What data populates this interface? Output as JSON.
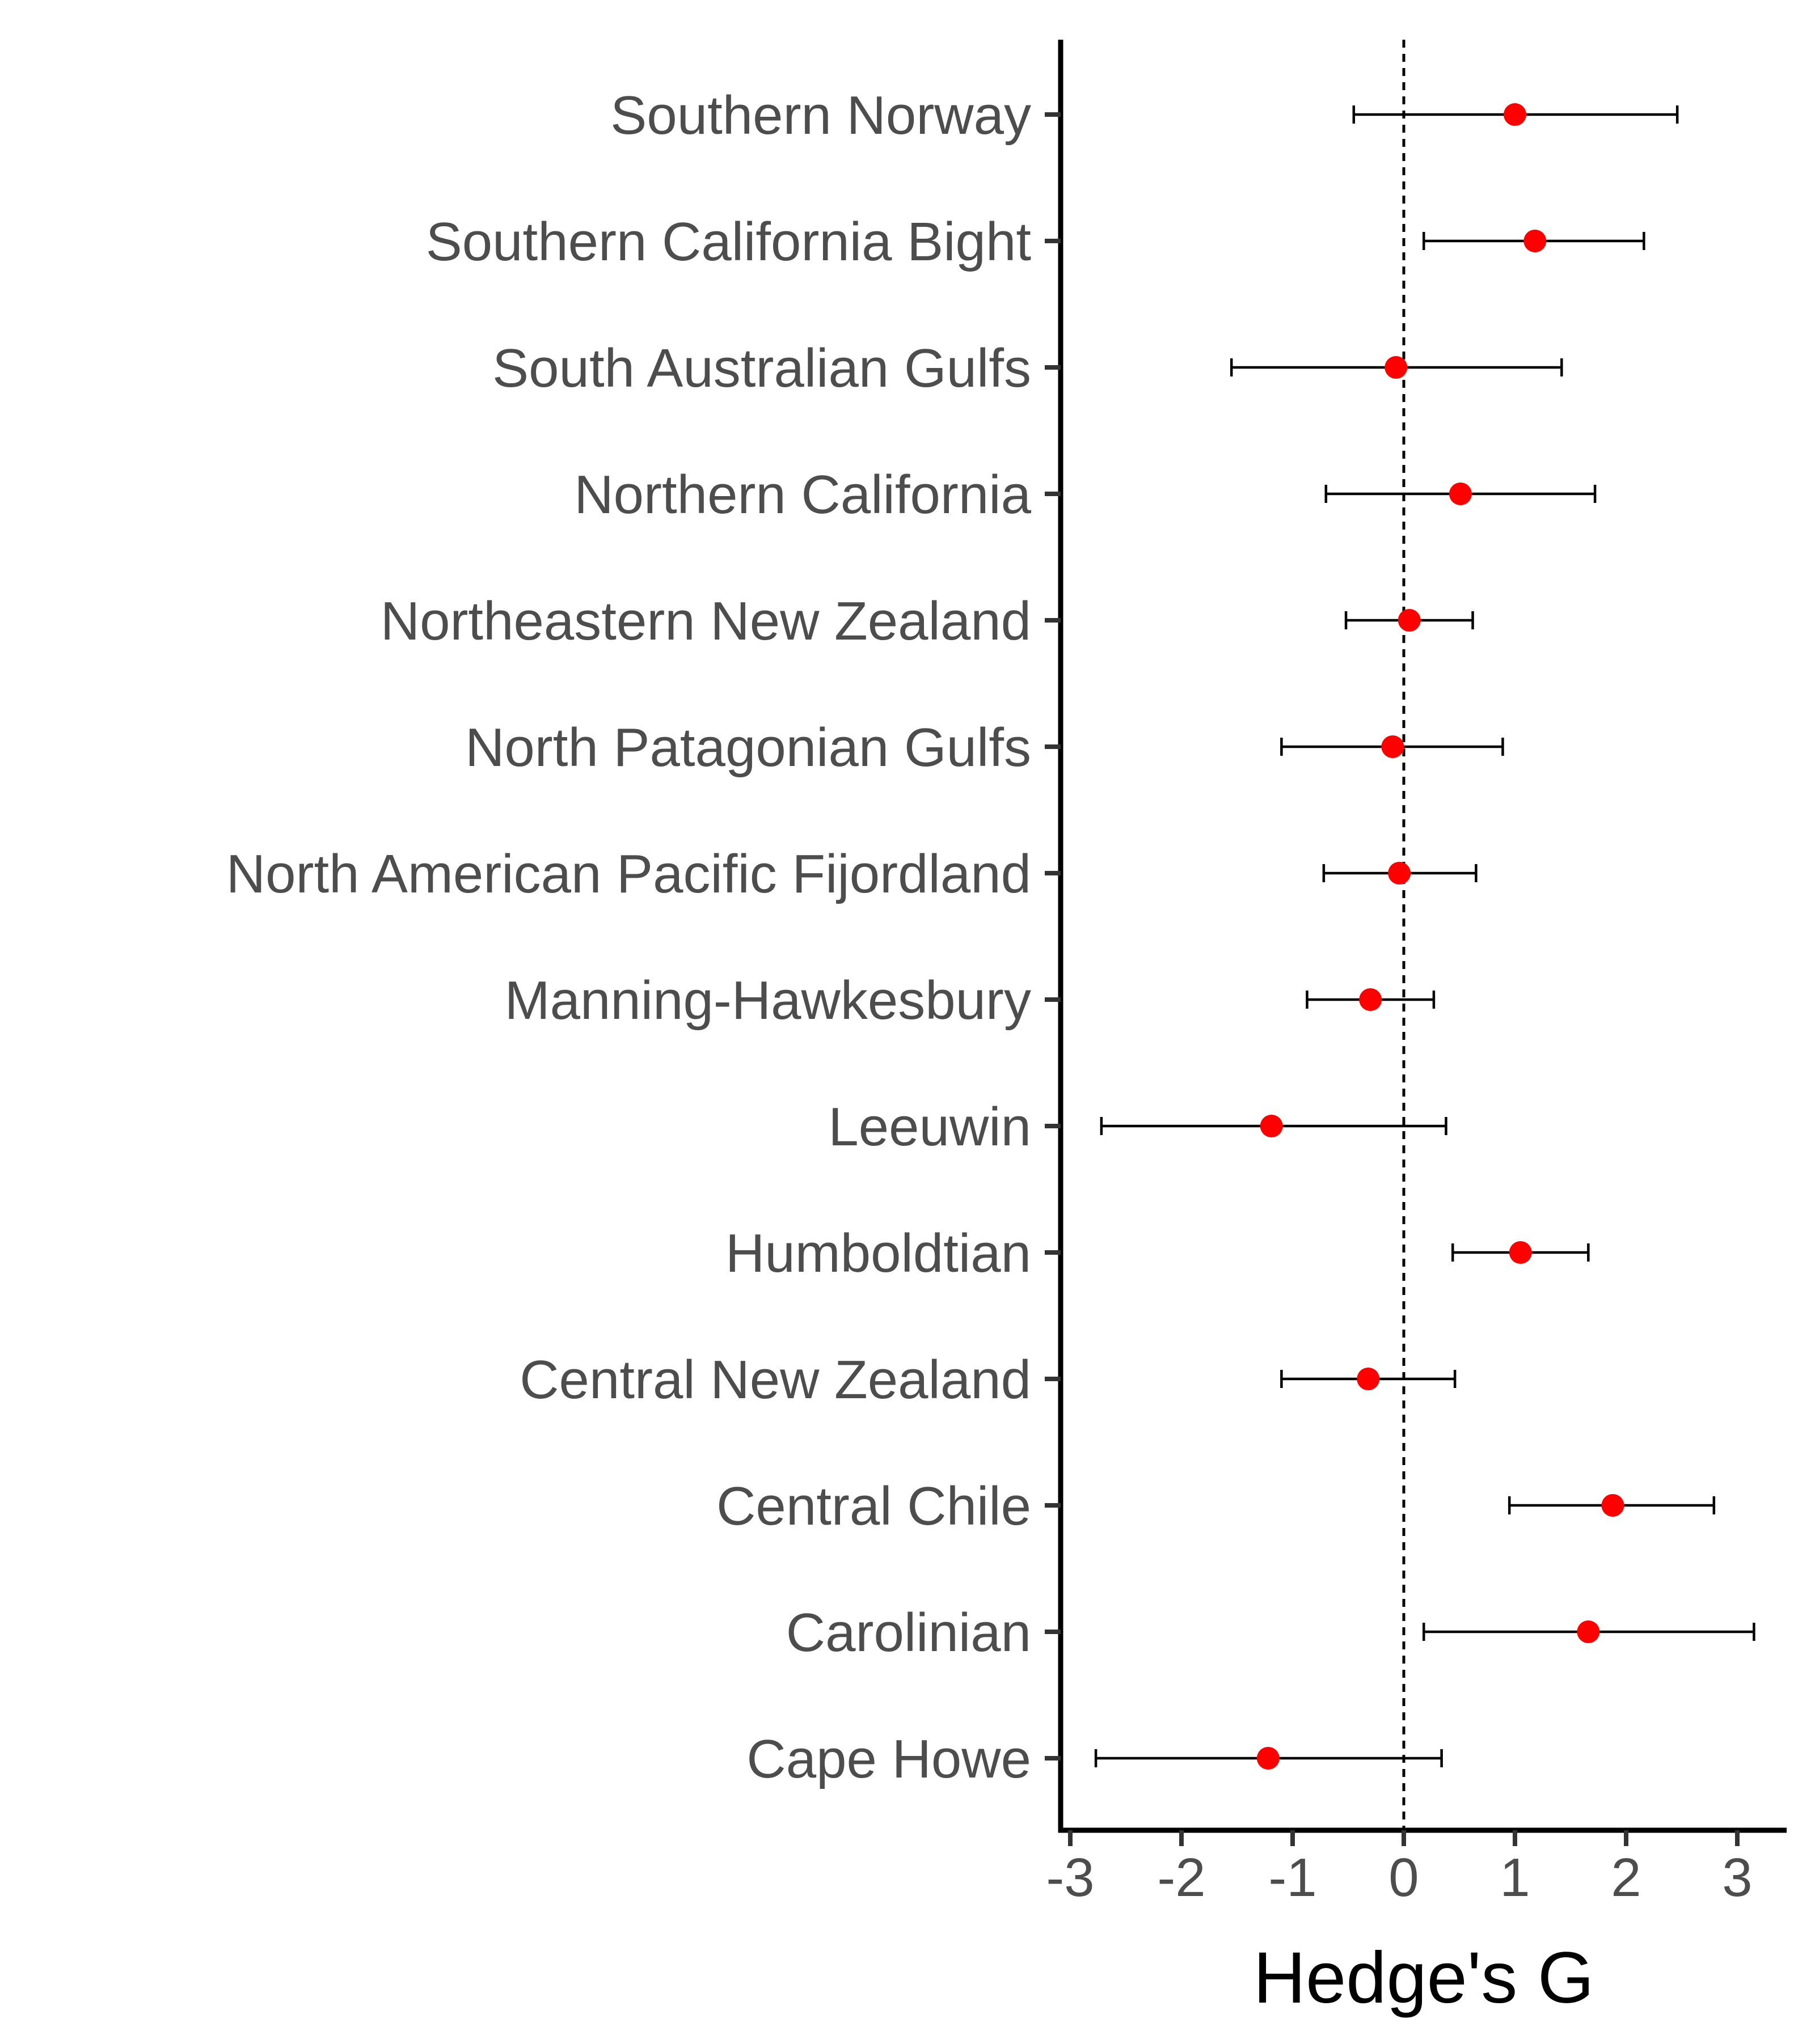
{
  "chart_data": {
    "type": "scatter",
    "subtype": "forest-plot",
    "title": "",
    "xlabel": "Hedge's G",
    "ylabel": "",
    "xlim": [
      -3.1,
      3.45
    ],
    "xticks": [
      -3,
      -2,
      -1,
      0,
      1,
      2,
      3
    ],
    "xtick_labels": [
      "-3",
      "-2",
      "-1",
      "0",
      "1",
      "2",
      "3"
    ],
    "reference_line": {
      "x": 0,
      "style": "dashed"
    },
    "grid": false,
    "legend": "none",
    "point_color": "#ff0000",
    "errorbar_color": "#000000",
    "categories": [
      "Southern Norway",
      "Southern California Bight",
      "South Australian Gulfs",
      "Northern California",
      "Northeastern New Zealand",
      "North Patagonian Gulfs",
      "North American Pacific Fijordland",
      "Manning-Hawkesbury",
      "Leeuwin",
      "Humboldtian",
      "Central New Zealand",
      "Central Chile",
      "Carolinian",
      "Cape Howe"
    ],
    "estimates": [
      1.0,
      1.18,
      -0.07,
      0.51,
      0.05,
      -0.1,
      -0.04,
      -0.3,
      -1.19,
      1.05,
      -0.32,
      1.88,
      1.66,
      -1.22
    ],
    "ci_lower": [
      -0.45,
      0.18,
      -1.55,
      -0.7,
      -0.52,
      -1.1,
      -0.72,
      -0.87,
      -2.72,
      0.44,
      -1.1,
      0.95,
      0.18,
      -2.77
    ],
    "ci_upper": [
      2.46,
      2.16,
      1.42,
      1.72,
      0.62,
      0.89,
      0.65,
      0.27,
      0.38,
      1.66,
      0.46,
      2.79,
      3.15,
      0.34
    ]
  }
}
